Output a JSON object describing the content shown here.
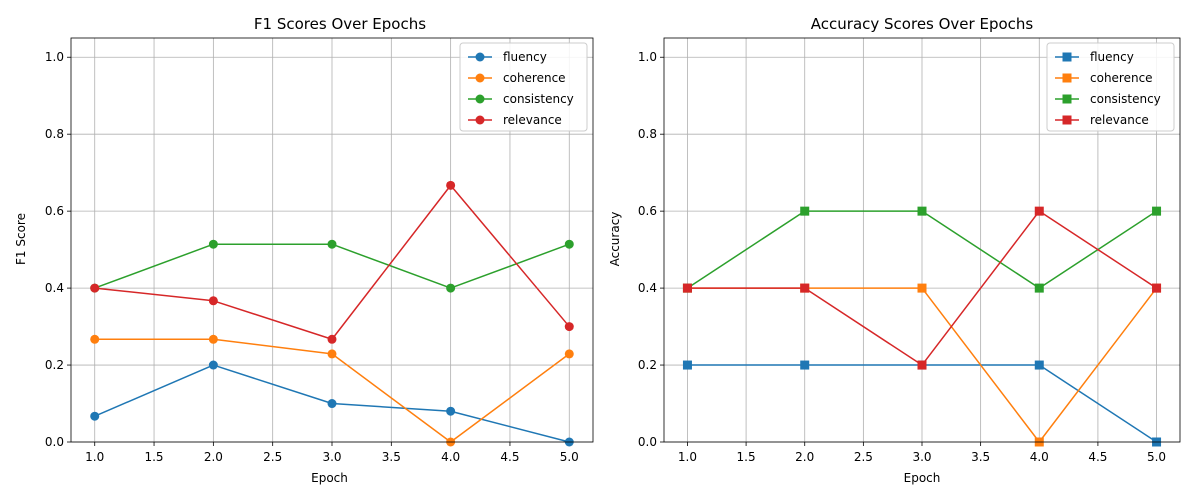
{
  "chart_data": [
    {
      "type": "line",
      "title": "F1 Scores Over Epochs",
      "xlabel": "Epoch",
      "ylabel": "F1 Score",
      "xlim": [
        0.8,
        5.2
      ],
      "ylim": [
        0.0,
        1.05
      ],
      "xticks": [
        "1.0",
        "1.5",
        "2.0",
        "2.5",
        "3.0",
        "3.5",
        "4.0",
        "4.5",
        "5.0"
      ],
      "yticks": [
        "0.0",
        "0.2",
        "0.4",
        "0.6",
        "0.8",
        "1.0"
      ],
      "grid": true,
      "legend_position": "top-right",
      "marker": "circle",
      "x": [
        1,
        2,
        3,
        4,
        5
      ],
      "series": [
        {
          "name": "fluency",
          "color": "#1f77b4",
          "values": [
            0.067,
            0.2,
            0.1,
            0.08,
            0.0
          ]
        },
        {
          "name": "coherence",
          "color": "#ff7f0e",
          "values": [
            0.267,
            0.267,
            0.229,
            0.0,
            0.229
          ]
        },
        {
          "name": "consistency",
          "color": "#2ca02c",
          "values": [
            0.4,
            0.514,
            0.514,
            0.4,
            0.514
          ]
        },
        {
          "name": "relevance",
          "color": "#d62728",
          "values": [
            0.4,
            0.367,
            0.267,
            0.667,
            0.3
          ]
        }
      ]
    },
    {
      "type": "line",
      "title": "Accuracy Scores Over Epochs",
      "xlabel": "Epoch",
      "ylabel": "Accuracy",
      "xlim": [
        0.8,
        5.2
      ],
      "ylim": [
        0.0,
        1.05
      ],
      "xticks": [
        "1.0",
        "1.5",
        "2.0",
        "2.5",
        "3.0",
        "3.5",
        "4.0",
        "4.5",
        "5.0"
      ],
      "yticks": [
        "0.0",
        "0.2",
        "0.4",
        "0.6",
        "0.8",
        "1.0"
      ],
      "grid": true,
      "legend_position": "top-right",
      "marker": "square",
      "x": [
        1,
        2,
        3,
        4,
        5
      ],
      "series": [
        {
          "name": "fluency",
          "color": "#1f77b4",
          "values": [
            0.2,
            0.2,
            0.2,
            0.2,
            0.0
          ]
        },
        {
          "name": "coherence",
          "color": "#ff7f0e",
          "values": [
            0.4,
            0.4,
            0.4,
            0.0,
            0.4
          ]
        },
        {
          "name": "consistency",
          "color": "#2ca02c",
          "values": [
            0.4,
            0.6,
            0.6,
            0.4,
            0.6
          ]
        },
        {
          "name": "relevance",
          "color": "#d62728",
          "values": [
            0.4,
            0.4,
            0.2,
            0.6,
            0.4
          ]
        }
      ]
    }
  ]
}
